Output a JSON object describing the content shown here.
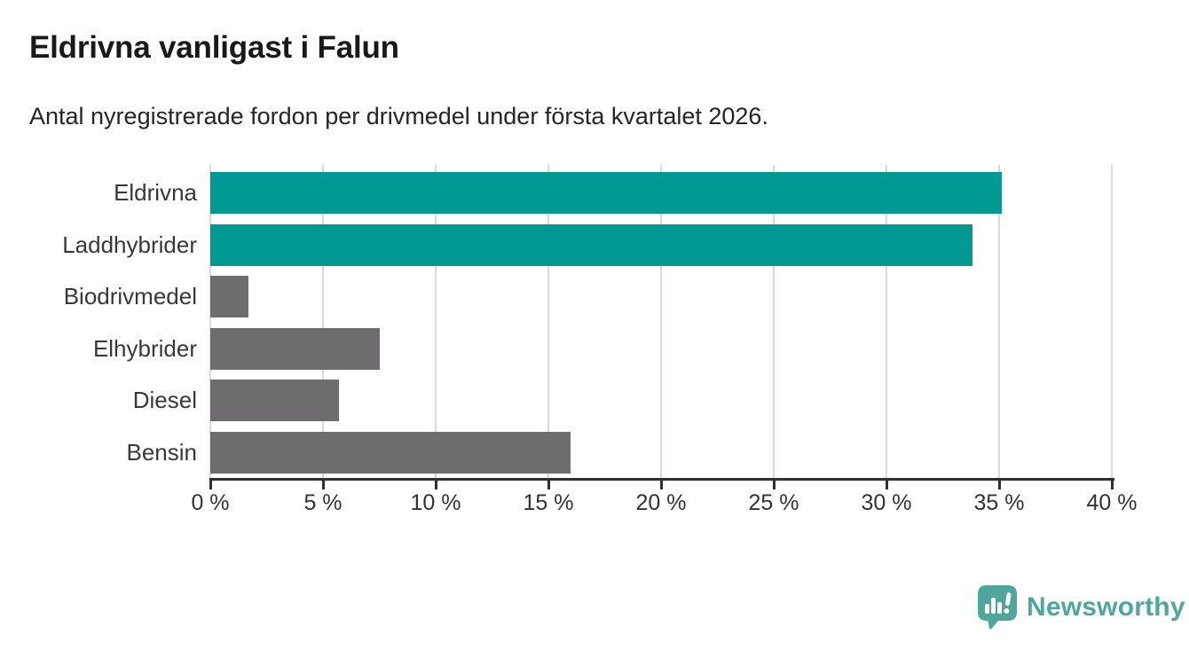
{
  "header": {
    "title": "Eldrivna vanligast i Falun",
    "subtitle": "Antal nyregistrerade fordon per drivmedel under första kvartalet 2026."
  },
  "chart_data": {
    "type": "bar",
    "orientation": "horizontal",
    "title": "Eldrivna vanligast i Falun",
    "subtitle": "Antal nyregistrerade fordon per drivmedel under första kvartalet 2026.",
    "categories": [
      "Eldrivna",
      "Laddhybrider",
      "Biodrivmedel",
      "Elhybrider",
      "Diesel",
      "Bensin"
    ],
    "values": [
      35.1,
      33.8,
      1.7,
      7.5,
      5.7,
      16.0
    ],
    "unit": "%",
    "xlim": [
      0,
      40
    ],
    "x_ticks": [
      0,
      5,
      10,
      15,
      20,
      25,
      30,
      35,
      40
    ],
    "x_tick_labels": [
      "0 %",
      "5 %",
      "10 %",
      "15 %",
      "20 %",
      "25 %",
      "30 %",
      "35 %",
      "40 %"
    ],
    "bar_colors": [
      "#009a92",
      "#009a92",
      "#6e6c6f",
      "#6e6c6f",
      "#6e6c6f",
      "#6e6c6f"
    ],
    "grid": true,
    "legend": null
  },
  "colors": {
    "highlight_bar": "#009a92",
    "default_bar": "#6e6c6f",
    "gridline": "#dadada",
    "axis": "#303030",
    "logo_teal": "#4fa79b"
  },
  "footer": {
    "brand": "Newsworthy",
    "logo_icon": "newsworthy-speech-bubble-chart-icon"
  }
}
